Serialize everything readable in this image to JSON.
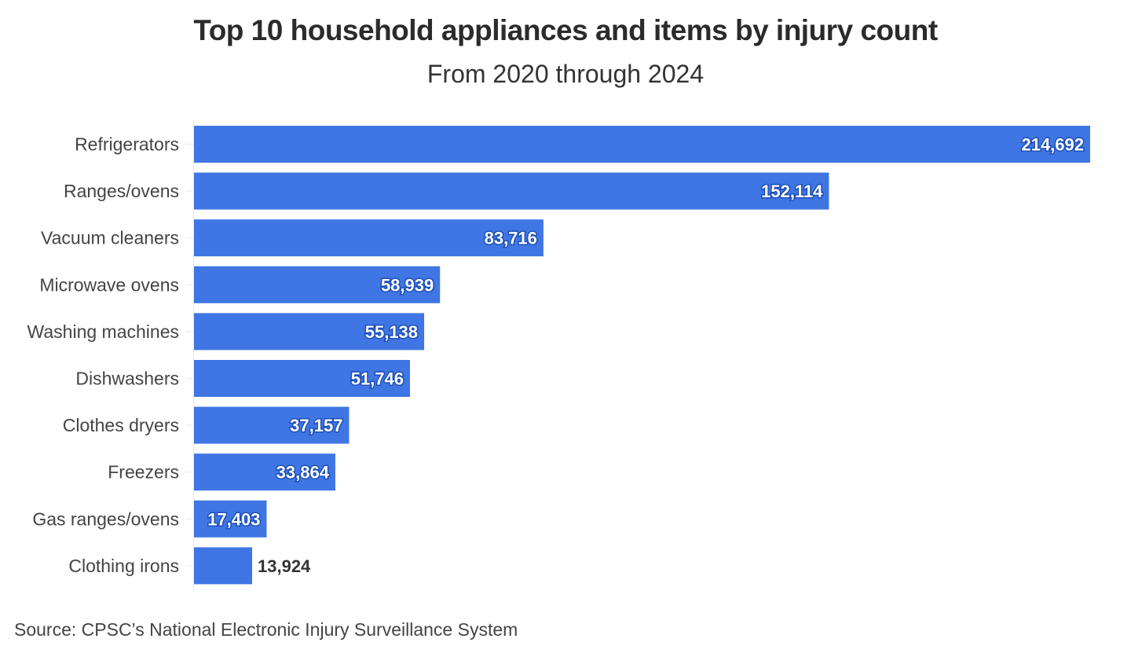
{
  "chart_data": {
    "type": "bar",
    "orientation": "horizontal",
    "title": "Top 10 household appliances and items by injury count",
    "subtitle": "From 2020 through 2024",
    "categories": [
      "Refrigerators",
      "Ranges/ovens",
      "Vacuum cleaners",
      "Microwave ovens",
      "Washing machines",
      "Dishwashers",
      "Clothes dryers",
      "Freezers",
      "Gas ranges/ovens",
      "Clothing irons"
    ],
    "values": [
      214692,
      152114,
      83716,
      58939,
      55138,
      51746,
      37157,
      33864,
      17403,
      13924
    ],
    "value_labels": [
      "214,692",
      "152,114",
      "83,716",
      "58,939",
      "55,138",
      "51,746",
      "37,157",
      "33,864",
      "17,403",
      "13,924"
    ],
    "xlabel": "",
    "ylabel": "",
    "xlim": [
      0,
      214692
    ],
    "grid": false,
    "legend": "none",
    "bar_color": "#3f76e4",
    "source": "Source: CPSC’s National Electronic Injury Surveillance System"
  }
}
